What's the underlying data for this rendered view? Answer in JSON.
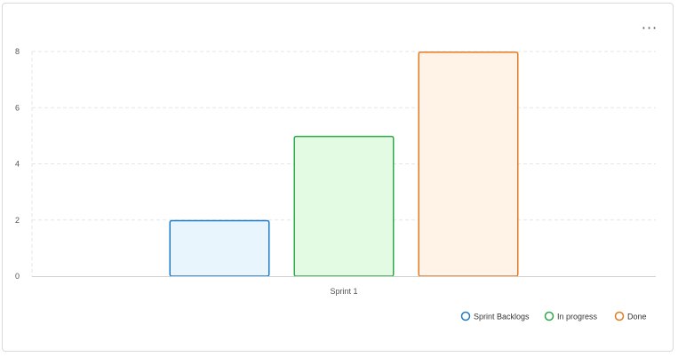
{
  "card": {
    "menu_icon": "more-horizontal-icon",
    "menu_glyph": "···"
  },
  "chart_data": {
    "type": "bar",
    "categories": [
      "Sprint 1"
    ],
    "series": [
      {
        "name": "Sprint Backlogs",
        "values": [
          2
        ],
        "stroke": "#1e7bc8",
        "fill": "#e8f5fd"
      },
      {
        "name": "In progress",
        "values": [
          5
        ],
        "stroke": "#2ea84a",
        "fill": "#e3fbe3"
      },
      {
        "name": "Done",
        "values": [
          8
        ],
        "stroke": "#e07b23",
        "fill": "#fff2e6"
      }
    ],
    "y_ticks": [
      "0",
      "2",
      "4",
      "6",
      "8"
    ],
    "ylim": [
      0,
      8
    ],
    "grid": true,
    "legend_position": "bottom-right",
    "title": "",
    "xlabel": "",
    "ylabel": ""
  }
}
